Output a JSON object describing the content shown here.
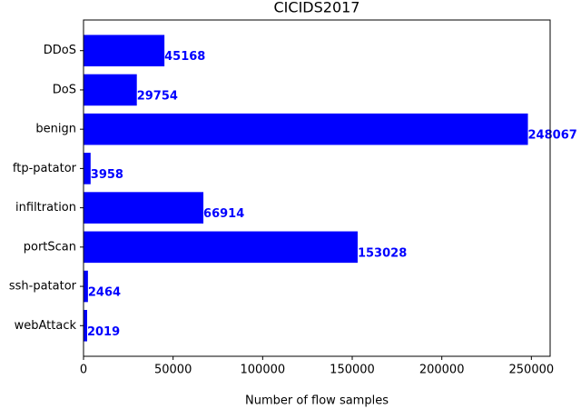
{
  "chart_data": {
    "type": "barh",
    "title": "CICIDS2017",
    "categories": [
      "DDoS",
      "DoS",
      "benign",
      "ftp-patator",
      "infiltration",
      "portScan",
      "ssh-patator",
      "webAttack"
    ],
    "values": [
      45168,
      29754,
      248067,
      3958,
      66914,
      153028,
      2464,
      2019
    ],
    "color": "#0000ff",
    "xlabel": "Number of flow samples",
    "xlim": [
      0,
      260470
    ],
    "xticks": [
      0,
      50000,
      100000,
      150000,
      200000,
      250000
    ],
    "grid": false
  }
}
